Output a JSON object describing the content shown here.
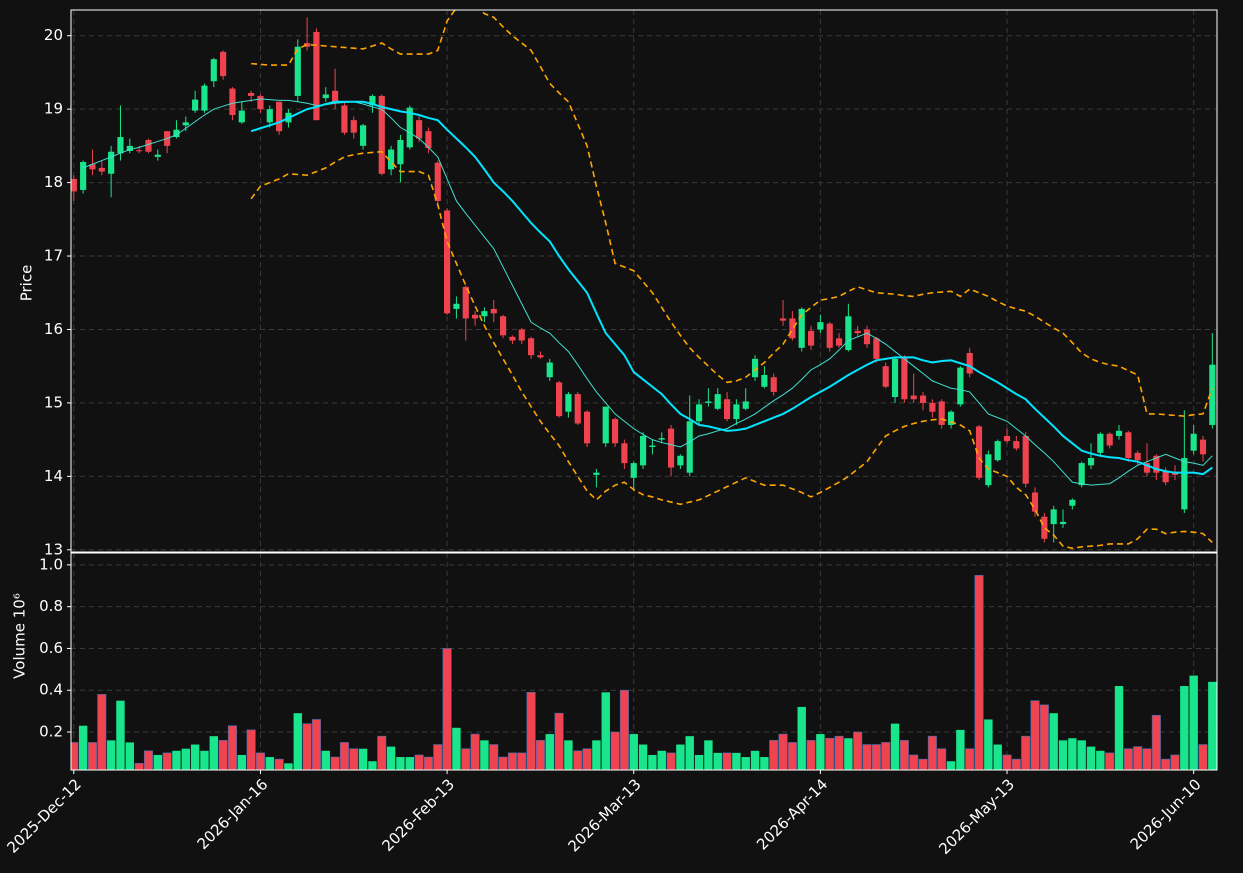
{
  "chart_data": {
    "type": "candlestick",
    "ylabel": "Price",
    "volume_ylabel": "Volume  10⁶",
    "up_color": "#19e68c",
    "down_color": "#ef4450",
    "grid": true,
    "xlim": [
      -0.3,
      122.5
    ],
    "ylim": [
      12.97,
      20.35
    ],
    "yticks": [
      13,
      14,
      15,
      16,
      17,
      18,
      19,
      20
    ],
    "volume_ylim": [
      0.018,
      1.057
    ],
    "volume_yticks": [
      0.2,
      0.4,
      0.6,
      0.8,
      {
        "value": 1,
        "label": "1.0"
      }
    ],
    "categories": [
      "2025-Dec-12",
      null,
      null,
      null,
      null,
      null,
      null,
      null,
      null,
      null,
      null,
      null,
      null,
      null,
      null,
      null,
      null,
      null,
      null,
      null,
      "2026-Jan-16",
      null,
      null,
      null,
      null,
      null,
      null,
      null,
      null,
      null,
      null,
      null,
      null,
      null,
      null,
      null,
      null,
      null,
      null,
      null,
      "2026-Feb-13",
      null,
      null,
      null,
      null,
      null,
      null,
      null,
      null,
      null,
      null,
      null,
      null,
      null,
      null,
      null,
      null,
      null,
      null,
      null,
      "2026-Mar-13",
      null,
      null,
      null,
      null,
      null,
      null,
      null,
      null,
      null,
      null,
      null,
      null,
      null,
      null,
      null,
      null,
      null,
      null,
      null,
      "2026-Apr-14",
      null,
      null,
      null,
      null,
      null,
      null,
      null,
      null,
      null,
      null,
      null,
      null,
      null,
      null,
      null,
      null,
      null,
      null,
      null,
      "2026-May-13",
      null,
      null,
      null,
      null,
      null,
      null,
      null,
      null,
      null,
      null,
      null,
      null,
      null,
      null,
      null,
      null,
      null,
      null,
      null,
      "2026-Jun-10",
      null,
      null
    ],
    "open": [
      18.05,
      17.9,
      18.25,
      18.2,
      18.12,
      18.4,
      18.43,
      18.44,
      18.58,
      18.35,
      18.7,
      18.62,
      18.78,
      18.98,
      18.98,
      19.38,
      19.78,
      19.28,
      18.82,
      19.22,
      19.18,
      18.82,
      19.1,
      18.82,
      19.18,
      19.9,
      20.05,
      19.15,
      19.25,
      19.05,
      18.85,
      18.5,
      19.05,
      19.18,
      18.18,
      18.25,
      18.48,
      18.85,
      18.7,
      18.27,
      17.62,
      16.28,
      16.58,
      16.2,
      16.18,
      16.28,
      16.18,
      15.9,
      16.0,
      15.88,
      15.65,
      15.35,
      15.28,
      14.88,
      15.12,
      14.88,
      14.02,
      14.45,
      14.78,
      14.45,
      13.98,
      14.15,
      14.4,
      14.5,
      14.65,
      14.15,
      14.05,
      14.75,
      15.0,
      14.92,
      15.05,
      14.78,
      14.92,
      15.35,
      15.22,
      15.35,
      16.15,
      16.15,
      15.75,
      15.98,
      16.0,
      16.08,
      15.88,
      15.72,
      15.98,
      16.0,
      15.88,
      15.5,
      15.08,
      15.62,
      15.1,
      15.1,
      15.0,
      15.02,
      14.7,
      14.98,
      15.68,
      14.68,
      13.88,
      14.22,
      14.55,
      14.48,
      14.55,
      13.78,
      13.45,
      13.35,
      13.35,
      13.6,
      13.88,
      14.15,
      14.32,
      14.58,
      14.55,
      14.6,
      14.32,
      14.18,
      14.28,
      14.08,
      14.05,
      13.55,
      14.35,
      14.5,
      14.7
    ],
    "high": [
      18.1,
      18.3,
      18.45,
      18.3,
      18.5,
      19.05,
      18.6,
      18.5,
      18.6,
      18.45,
      18.7,
      18.85,
      18.9,
      19.25,
      19.35,
      19.7,
      19.8,
      19.3,
      19.1,
      19.25,
      19.2,
      19.05,
      19.1,
      19.0,
      19.95,
      20.25,
      20.1,
      19.3,
      19.55,
      19.1,
      18.9,
      18.8,
      19.2,
      19.2,
      18.5,
      18.65,
      19.05,
      18.9,
      18.75,
      18.3,
      17.65,
      16.45,
      16.6,
      16.25,
      16.3,
      16.4,
      16.2,
      15.92,
      16.02,
      15.9,
      15.7,
      15.6,
      15.3,
      15.15,
      15.15,
      14.9,
      14.1,
      14.95,
      14.8,
      14.5,
      14.2,
      14.6,
      14.5,
      14.6,
      14.7,
      14.3,
      15.1,
      15.05,
      15.2,
      15.2,
      15.15,
      15.05,
      15.2,
      15.65,
      15.5,
      15.4,
      16.4,
      16.25,
      16.3,
      16.05,
      16.2,
      16.1,
      15.95,
      16.35,
      16.05,
      16.05,
      15.9,
      15.55,
      15.62,
      15.65,
      15.4,
      15.15,
      15.05,
      15.05,
      14.9,
      15.5,
      15.75,
      14.7,
      14.35,
      14.5,
      14.65,
      14.55,
      14.6,
      13.85,
      13.5,
      13.6,
      13.55,
      13.7,
      14.2,
      14.45,
      14.6,
      14.6,
      14.7,
      14.62,
      14.35,
      14.45,
      14.3,
      14.12,
      14.15,
      14.9,
      14.7,
      14.55,
      15.95
    ],
    "low": [
      17.75,
      17.85,
      18.1,
      18.1,
      17.8,
      18.3,
      18.4,
      18.4,
      18.4,
      18.3,
      18.4,
      18.6,
      18.7,
      18.95,
      18.95,
      19.3,
      19.4,
      18.85,
      18.8,
      19.1,
      18.95,
      18.75,
      18.65,
      18.75,
      19.1,
      19.8,
      18.85,
      19.1,
      19.0,
      18.65,
      18.6,
      18.45,
      18.95,
      18.1,
      18.1,
      18.0,
      18.45,
      18.55,
      18.4,
      17.7,
      16.2,
      16.15,
      15.85,
      16.05,
      16.1,
      16.1,
      15.88,
      15.8,
      15.8,
      15.6,
      15.6,
      15.3,
      14.8,
      14.8,
      14.7,
      14.4,
      13.85,
      14.4,
      14.4,
      14.1,
      13.8,
      14.1,
      14.3,
      14.45,
      14.0,
      14.1,
      14.0,
      14.7,
      14.95,
      14.9,
      14.75,
      14.7,
      14.9,
      15.3,
      15.2,
      15.1,
      16.05,
      15.85,
      15.7,
      15.72,
      15.95,
      15.7,
      15.75,
      15.7,
      15.9,
      15.75,
      15.55,
      15.2,
      15.0,
      15.0,
      15.0,
      14.9,
      14.8,
      14.65,
      14.65,
      14.95,
      15.35,
      13.95,
      13.85,
      14.2,
      14.45,
      14.35,
      13.85,
      13.45,
      13.1,
      13.1,
      13.3,
      13.55,
      13.85,
      14.1,
      14.28,
      14.38,
      14.5,
      14.2,
      14.15,
      14.0,
      13.95,
      13.88,
      13.95,
      13.5,
      14.3,
      14.2,
      14.65
    ],
    "close": [
      17.88,
      18.28,
      18.18,
      18.15,
      18.42,
      18.62,
      18.5,
      18.43,
      18.42,
      18.38,
      18.5,
      18.72,
      18.82,
      19.13,
      19.32,
      19.68,
      19.45,
      18.92,
      18.98,
      19.18,
      19.0,
      19.0,
      18.7,
      18.95,
      19.85,
      19.85,
      18.85,
      19.2,
      19.1,
      18.68,
      18.68,
      18.78,
      19.18,
      18.12,
      18.45,
      18.58,
      19.02,
      18.6,
      18.47,
      17.75,
      16.22,
      16.35,
      16.15,
      16.15,
      16.25,
      16.22,
      15.92,
      15.85,
      15.85,
      15.65,
      15.62,
      15.55,
      14.82,
      15.12,
      14.72,
      14.45,
      14.05,
      14.95,
      14.45,
      14.18,
      14.18,
      14.55,
      14.42,
      14.52,
      14.12,
      14.28,
      14.75,
      14.98,
      15.02,
      15.12,
      14.78,
      14.98,
      15.02,
      15.6,
      15.38,
      15.15,
      16.12,
      15.88,
      16.28,
      15.78,
      16.1,
      15.75,
      15.78,
      16.18,
      15.95,
      15.8,
      15.6,
      15.22,
      15.6,
      15.05,
      15.05,
      15.0,
      14.88,
      14.7,
      14.88,
      15.48,
      15.4,
      13.98,
      14.3,
      14.48,
      14.48,
      14.38,
      13.9,
      13.52,
      13.15,
      13.55,
      13.38,
      13.68,
      14.18,
      14.25,
      14.58,
      14.42,
      14.62,
      14.25,
      14.22,
      14.05,
      14.05,
      13.92,
      14.02,
      14.25,
      14.58,
      14.3,
      15.52
    ],
    "volume": [
      0.15,
      0.23,
      0.15,
      0.38,
      0.16,
      0.35,
      0.15,
      0.05,
      0.11,
      0.09,
      0.1,
      0.11,
      0.12,
      0.14,
      0.11,
      0.18,
      0.16,
      0.23,
      0.09,
      0.21,
      0.1,
      0.08,
      0.07,
      0.05,
      0.29,
      0.24,
      0.26,
      0.11,
      0.08,
      0.15,
      0.12,
      0.12,
      0.06,
      0.18,
      0.13,
      0.08,
      0.08,
      0.09,
      0.08,
      0.14,
      0.6,
      0.22,
      0.12,
      0.19,
      0.16,
      0.14,
      0.08,
      0.1,
      0.1,
      0.39,
      0.16,
      0.19,
      0.29,
      0.16,
      0.11,
      0.12,
      0.16,
      0.39,
      0.2,
      0.4,
      0.19,
      0.14,
      0.09,
      0.11,
      0.1,
      0.14,
      0.18,
      0.09,
      0.16,
      0.1,
      0.1,
      0.1,
      0.08,
      0.11,
      0.08,
      0.16,
      0.19,
      0.15,
      0.32,
      0.16,
      0.19,
      0.17,
      0.18,
      0.17,
      0.2,
      0.14,
      0.14,
      0.15,
      0.24,
      0.16,
      0.09,
      0.07,
      0.18,
      0.12,
      0.06,
      0.21,
      0.12,
      0.95,
      0.26,
      0.14,
      0.09,
      0.07,
      0.18,
      0.35,
      0.33,
      0.29,
      0.16,
      0.17,
      0.16,
      0.13,
      0.11,
      0.1,
      0.42,
      0.12,
      0.13,
      0.12,
      0.28,
      0.07,
      0.09,
      0.42,
      0.47,
      0.14,
      0.44
    ],
    "series": [
      {
        "color": "#ffa500",
        "linewidth": 1.6,
        "linestyle": "dashed",
        "values": [
          null,
          null,
          null,
          null,
          null,
          null,
          null,
          null,
          null,
          null,
          null,
          null,
          null,
          null,
          null,
          null,
          null,
          null,
          null,
          19.62,
          19.61,
          19.6,
          19.6,
          19.6,
          19.82,
          19.88,
          19.87,
          19.86,
          19.85,
          19.84,
          19.83,
          19.82,
          19.86,
          19.9,
          19.82,
          19.75,
          19.75,
          19.75,
          19.75,
          19.8,
          20.2,
          20.38,
          20.45,
          20.42,
          20.3,
          20.25,
          20.12,
          20.0,
          19.9,
          19.8,
          19.58,
          19.35,
          19.22,
          19.1,
          18.8,
          18.5,
          17.95,
          17.45,
          16.9,
          16.85,
          16.8,
          16.65,
          16.5,
          16.3,
          16.1,
          15.92,
          15.75,
          15.62,
          15.5,
          15.38,
          15.28,
          15.3,
          15.35,
          15.45,
          15.55,
          15.68,
          15.8,
          16.0,
          16.2,
          16.3,
          16.4,
          16.42,
          16.45,
          16.52,
          16.58,
          16.54,
          16.5,
          16.49,
          16.48,
          16.46,
          16.45,
          16.48,
          16.5,
          16.51,
          16.52,
          16.45,
          16.55,
          16.5,
          16.45,
          16.38,
          16.32,
          16.28,
          16.25,
          16.18,
          16.1,
          16.02,
          15.95,
          15.82,
          15.68,
          15.6,
          15.55,
          15.52,
          15.5,
          15.44,
          15.38,
          14.85,
          14.85,
          14.84,
          14.83,
          14.82,
          14.84,
          14.85,
          15.2
        ]
      },
      {
        "color": "#ffa500",
        "linewidth": 1.6,
        "linestyle": "dashed",
        "values": [
          null,
          null,
          null,
          null,
          null,
          null,
          null,
          null,
          null,
          null,
          null,
          null,
          null,
          null,
          null,
          null,
          null,
          null,
          null,
          17.78,
          17.95,
          18.0,
          18.05,
          18.12,
          18.11,
          18.1,
          18.15,
          18.2,
          18.28,
          18.35,
          18.38,
          18.4,
          18.41,
          18.42,
          18.28,
          18.15,
          18.15,
          18.15,
          18.1,
          17.7,
          17.2,
          16.9,
          16.6,
          16.32,
          16.05,
          15.82,
          15.6,
          15.38,
          15.15,
          14.95,
          14.75,
          14.58,
          14.42,
          14.2,
          14.0,
          13.8,
          13.68,
          13.8,
          13.88,
          13.92,
          13.82,
          13.75,
          13.72,
          13.68,
          13.65,
          13.62,
          13.65,
          13.68,
          13.74,
          13.8,
          13.86,
          13.92,
          13.98,
          13.93,
          13.88,
          13.88,
          13.88,
          13.83,
          13.78,
          13.72,
          13.78,
          13.85,
          13.92,
          14.0,
          14.1,
          14.2,
          14.38,
          14.55,
          14.62,
          14.68,
          14.72,
          14.75,
          14.77,
          14.78,
          14.74,
          14.7,
          14.62,
          14.25,
          14.1,
          14.05,
          14.0,
          13.85,
          13.75,
          13.55,
          13.3,
          13.2,
          13.05,
          13.02,
          13.04,
          13.05,
          13.06,
          13.08,
          13.08,
          13.08,
          13.15,
          13.28,
          13.28,
          13.22,
          13.24,
          13.25,
          13.24,
          13.22,
          13.1
        ]
      },
      {
        "color": "#40e0d0",
        "linewidth": 1,
        "linestyle": "solid",
        "values": [
          null,
          18.2,
          18.25,
          18.3,
          18.35,
          18.4,
          18.45,
          18.48,
          18.52,
          18.56,
          18.6,
          18.65,
          18.74,
          18.83,
          18.92,
          19.0,
          19.04,
          19.08,
          19.1,
          19.12,
          19.14,
          19.13,
          19.12,
          19.12,
          19.1,
          19.08,
          19.05,
          19.06,
          19.08,
          19.09,
          19.1,
          19.07,
          19.03,
          19.0,
          18.88,
          18.75,
          18.68,
          18.6,
          18.48,
          18.35,
          18.05,
          17.75,
          17.58,
          17.42,
          17.26,
          17.1,
          16.85,
          16.6,
          16.35,
          16.1,
          16.02,
          15.95,
          15.82,
          15.7,
          15.52,
          15.33,
          15.15,
          15.0,
          14.85,
          14.75,
          14.65,
          14.57,
          14.5,
          14.46,
          14.43,
          14.4,
          14.47,
          14.55,
          14.58,
          14.62,
          14.65,
          14.72,
          14.78,
          14.85,
          14.94,
          15.03,
          15.11,
          15.2,
          15.32,
          15.45,
          15.52,
          15.6,
          15.72,
          15.85,
          15.9,
          15.95,
          15.88,
          15.8,
          15.7,
          15.6,
          15.5,
          15.4,
          15.3,
          15.25,
          15.2,
          15.18,
          15.15,
          15.0,
          14.85,
          14.8,
          14.75,
          14.65,
          14.55,
          14.43,
          14.32,
          14.2,
          14.06,
          13.92,
          13.9,
          13.88,
          13.89,
          13.9,
          13.98,
          14.07,
          14.15,
          14.2,
          14.25,
          14.3,
          14.25,
          14.2,
          14.18,
          14.15,
          14.28
        ]
      },
      {
        "color": "#00e5ff",
        "linewidth": 2,
        "linestyle": "solid",
        "values": [
          null,
          null,
          null,
          null,
          null,
          null,
          null,
          null,
          null,
          null,
          null,
          null,
          null,
          null,
          null,
          null,
          null,
          null,
          null,
          18.7,
          18.74,
          18.78,
          18.82,
          18.88,
          18.94,
          19.0,
          19.03,
          19.07,
          19.1,
          19.1,
          19.1,
          19.1,
          19.07,
          19.03,
          19.0,
          18.97,
          18.95,
          18.92,
          18.88,
          18.85,
          18.72,
          18.6,
          18.48,
          18.35,
          18.18,
          18.0,
          17.88,
          17.75,
          17.6,
          17.45,
          17.32,
          17.2,
          17.0,
          16.82,
          16.66,
          16.5,
          16.22,
          15.95,
          15.8,
          15.65,
          15.42,
          15.32,
          15.22,
          15.12,
          14.98,
          14.85,
          14.78,
          14.7,
          14.68,
          14.65,
          14.62,
          14.63,
          14.65,
          14.7,
          14.75,
          14.8,
          14.85,
          14.92,
          15.0,
          15.08,
          15.15,
          15.22,
          15.3,
          15.38,
          15.45,
          15.52,
          15.58,
          15.6,
          15.62,
          15.62,
          15.62,
          15.58,
          15.55,
          15.57,
          15.58,
          15.54,
          15.5,
          15.42,
          15.35,
          15.28,
          15.2,
          15.12,
          15.05,
          14.92,
          14.8,
          14.68,
          14.55,
          14.45,
          14.35,
          14.31,
          14.28,
          14.26,
          14.25,
          14.22,
          14.2,
          14.15,
          14.1,
          14.07,
          14.05,
          14.05,
          14.05,
          14.03,
          14.12
        ]
      }
    ]
  }
}
